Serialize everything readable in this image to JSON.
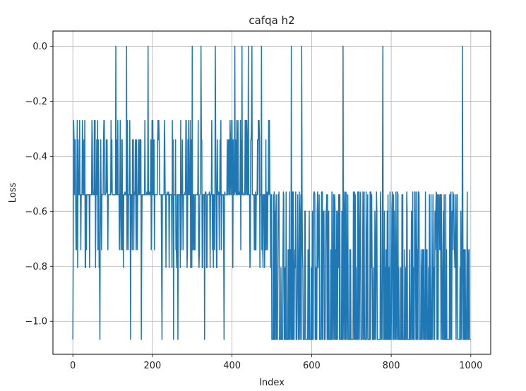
{
  "chart_data": {
    "type": "line",
    "title": "cafqa h2",
    "xlabel": "Index",
    "ylabel": "Loss",
    "xlim": [
      -50,
      1050
    ],
    "ylim": [
      -1.12,
      0.055
    ],
    "xticks": [
      0,
      200,
      400,
      600,
      800,
      1000
    ],
    "yticks": [
      0.0,
      -0.2,
      -0.4,
      -0.6,
      -0.8,
      -1.0
    ],
    "xtick_labels": [
      "0",
      "200",
      "400",
      "600",
      "800",
      "1000"
    ],
    "ytick_labels": [
      "0.0",
      "−0.2",
      "−0.4",
      "−0.6",
      "−0.8",
      "−1.0"
    ],
    "grid": true,
    "series": [
      {
        "color": "#1f77b4",
        "n_points": 1001,
        "levels": [
          -1.066,
          -1.0,
          -0.805,
          -0.74,
          -0.6,
          -0.54,
          -0.53,
          -0.46,
          -0.42,
          -0.34,
          -0.27,
          0.0
        ],
        "phases": [
          {
            "x_range": [
              0,
              500
            ],
            "dominant_level": -0.54,
            "common_levels": [
              -0.805,
              -0.74,
              -0.54,
              -0.53,
              -0.34,
              -0.27
            ],
            "rare_levels": [
              0.0,
              -1.066
            ]
          },
          {
            "x_range": [
              500,
              1000
            ],
            "dominant_level": -1.066,
            "common_levels": [
              -1.066,
              -0.805,
              -0.74,
              -0.6,
              -0.54,
              -0.53
            ],
            "rare_levels": [
              0.0,
              -0.27,
              -0.34
            ]
          }
        ],
        "spikes_to_zero_at": [
          108,
          135,
          189,
          300,
          322,
          358,
          407,
          425,
          441,
          450,
          474,
          549,
          575,
          679,
          779,
          979
        ],
        "spikes_to_min_at": [
          0,
          68,
          145,
          172,
          224,
          253,
          264,
          331,
          380
        ]
      }
    ]
  }
}
